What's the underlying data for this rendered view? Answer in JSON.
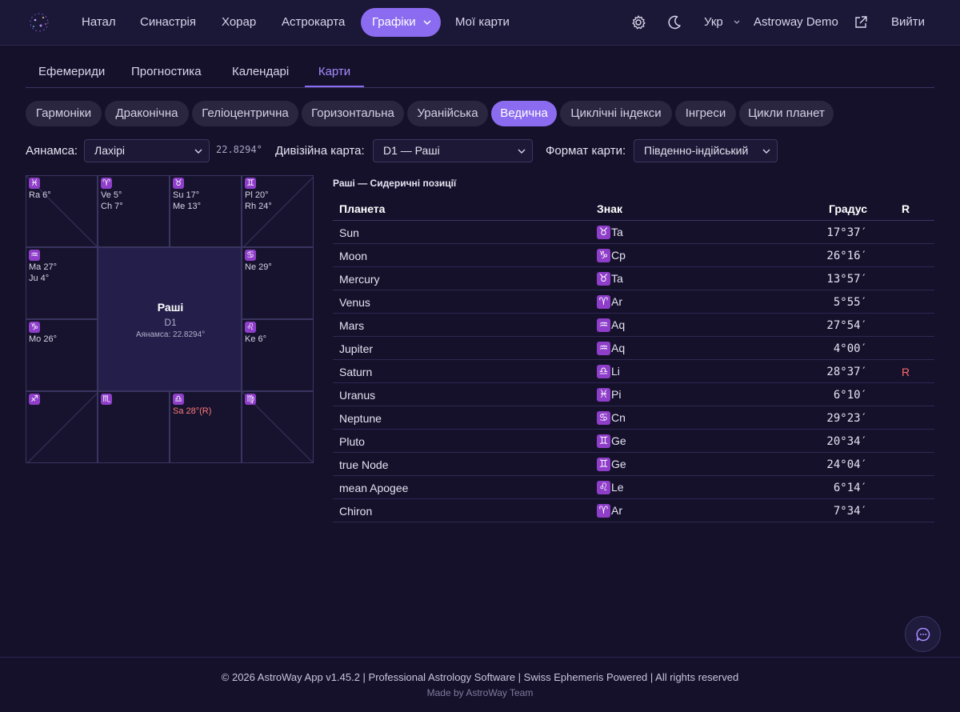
{
  "nav": {
    "items": [
      "Натал",
      "Синастрія",
      "Хорар",
      "Астрокарта"
    ],
    "active": "Графіки",
    "after": "Мої карти",
    "lang": "Укр",
    "user": "Astroway Demo",
    "logout": "Вийти"
  },
  "tabs": [
    "Ефемериди",
    "Прогностика",
    "Календарі",
    "Карти"
  ],
  "chips": [
    "Гармоніки",
    "Драконічна",
    "Геліоцентрична",
    "Горизонтальна",
    "Уранійська",
    "Ведична",
    "Циклічні індекси",
    "Інгреси",
    "Цикли планет"
  ],
  "controls": {
    "ayanamsa_label": "Аянамса:",
    "ayanamsa_value": "Лахірі",
    "ayanamsa_degree": "22.8294°",
    "division_label": "Дивізійна карта:",
    "division_value": "D1 — Раші",
    "format_label": "Формат карти:",
    "format_value": "Південно-індійський"
  },
  "chart": {
    "center_title": "Раші",
    "center_sub": "D1",
    "center_ayanamsa": "Аянамса: 22.8294°",
    "cells": [
      {
        "glyph": "♓",
        "lines": [
          "Ra 6°"
        ]
      },
      {
        "glyph": "♈",
        "lines": [
          "Ve 5°",
          "Ch 7°"
        ]
      },
      {
        "glyph": "♉",
        "lines": [
          "Su 17°",
          "Me 13°"
        ]
      },
      {
        "glyph": "♊",
        "lines": [
          "Pl 20°",
          "Rh 24°"
        ]
      },
      {
        "glyph": "♒",
        "lines": [
          "Ma 27°",
          "Ju 4°"
        ]
      },
      {
        "glyph": "♋",
        "lines": [
          "Ne 29°"
        ]
      },
      {
        "glyph": "♑",
        "lines": [
          "Mo 26°"
        ]
      },
      {
        "glyph": "♌",
        "lines": [
          "Ke 6°"
        ]
      },
      {
        "glyph": "♐",
        "lines": []
      },
      {
        "glyph": "♏",
        "lines": []
      },
      {
        "glyph": "♎",
        "lines": [
          "Sa 28°(R)"
        ]
      },
      {
        "glyph": "♍",
        "lines": []
      }
    ]
  },
  "table": {
    "title": "Раші — Сидеричні позиції",
    "headers": {
      "planet": "Планета",
      "sign": "Знак",
      "degree": "Градус",
      "retro": "R"
    },
    "rows": [
      {
        "planet": "Sun",
        "glyph": "♉",
        "sign": "Ta",
        "degree": "17°37′",
        "retro": ""
      },
      {
        "planet": "Moon",
        "glyph": "♑",
        "sign": "Cp",
        "degree": "26°16′",
        "retro": ""
      },
      {
        "planet": "Mercury",
        "glyph": "♉",
        "sign": "Ta",
        "degree": "13°57′",
        "retro": ""
      },
      {
        "planet": "Venus",
        "glyph": "♈",
        "sign": "Ar",
        "degree": "5°55′",
        "retro": ""
      },
      {
        "planet": "Mars",
        "glyph": "♒",
        "sign": "Aq",
        "degree": "27°54′",
        "retro": ""
      },
      {
        "planet": "Jupiter",
        "glyph": "♒",
        "sign": "Aq",
        "degree": "4°00′",
        "retro": ""
      },
      {
        "planet": "Saturn",
        "glyph": "♎",
        "sign": "Li",
        "degree": "28°37′",
        "retro": "R"
      },
      {
        "planet": "Uranus",
        "glyph": "♓",
        "sign": "Pi",
        "degree": "6°10′",
        "retro": ""
      },
      {
        "planet": "Neptune",
        "glyph": "♋",
        "sign": "Cn",
        "degree": "29°23′",
        "retro": ""
      },
      {
        "planet": "Pluto",
        "glyph": "♊",
        "sign": "Ge",
        "degree": "20°34′",
        "retro": ""
      },
      {
        "planet": "true Node",
        "glyph": "♊",
        "sign": "Ge",
        "degree": "24°04′",
        "retro": ""
      },
      {
        "planet": "mean Apogee",
        "glyph": "♌",
        "sign": "Le",
        "degree": "6°14′",
        "retro": ""
      },
      {
        "planet": "Chiron",
        "glyph": "♈",
        "sign": "Ar",
        "degree": "7°34′",
        "retro": ""
      }
    ]
  },
  "footer": {
    "line1": "© 2026 AstroWay App v1.45.2 | Professional Astrology Software | Swiss Ephemeris Powered | All rights reserved",
    "line2": "Made by AstroWay Team"
  },
  "colors": {
    "accent": "#8b6cf0",
    "sign_badge": "#8e3ec9",
    "retro": "#ff6b6b",
    "background": "#15112b"
  }
}
